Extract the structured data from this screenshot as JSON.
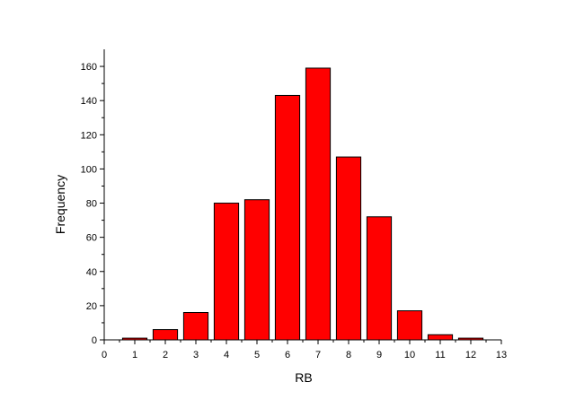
{
  "chart_data": {
    "type": "bar",
    "title": "",
    "xlabel": "RB",
    "ylabel": "Frequency",
    "x": [
      1,
      2,
      3,
      4,
      5,
      6,
      7,
      8,
      9,
      10,
      11,
      12
    ],
    "values": [
      1,
      6,
      16,
      80,
      82,
      143,
      159,
      107,
      72,
      17,
      3,
      1
    ],
    "xlim": [
      0,
      13
    ],
    "ylim": [
      0,
      170
    ],
    "xticks": [
      0,
      1,
      2,
      3,
      4,
      5,
      6,
      7,
      8,
      9,
      10,
      11,
      12,
      13
    ],
    "yticks": [
      0,
      20,
      40,
      60,
      80,
      100,
      120,
      140,
      160
    ],
    "grid": false,
    "legend": "none",
    "bar_color": "#ff0000",
    "edge_color": "#000000"
  }
}
